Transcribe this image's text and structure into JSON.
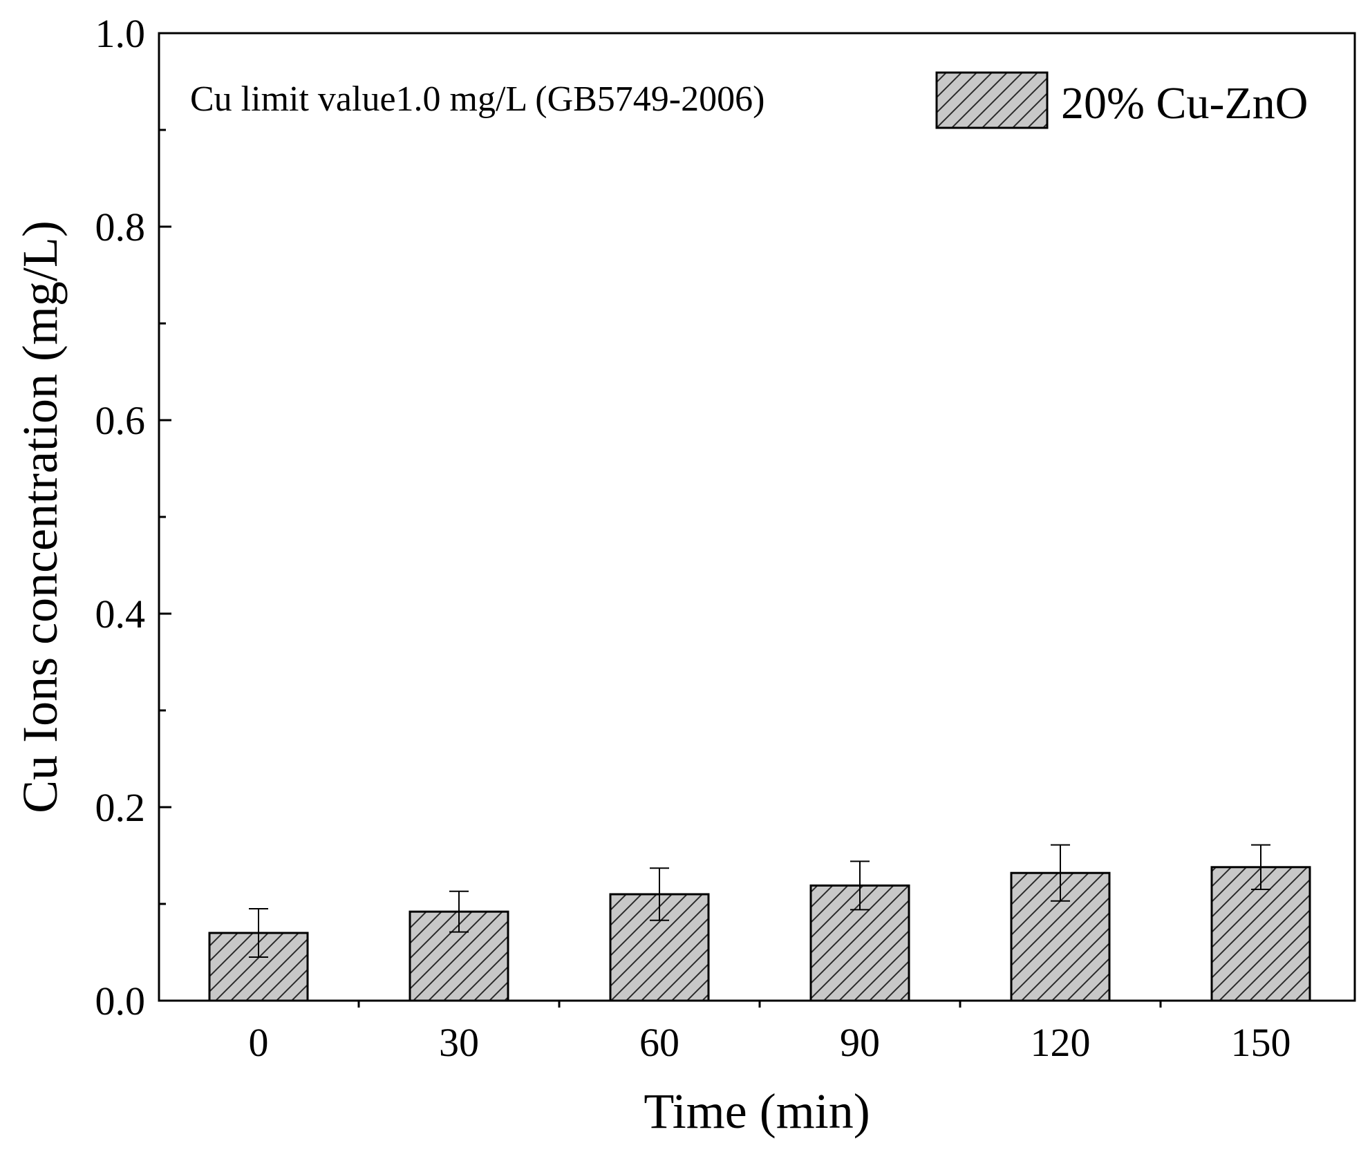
{
  "chart_data": {
    "type": "bar",
    "title": "",
    "xlabel": "Time (min)",
    "ylabel": "Cu Ions concentration (mg/L)",
    "categories": [
      "0",
      "30",
      "60",
      "90",
      "120",
      "150"
    ],
    "series": [
      {
        "name": "20% Cu-ZnO",
        "values": [
          0.07,
          0.092,
          0.11,
          0.119,
          0.132,
          0.138
        ],
        "errors": [
          0.025,
          0.021,
          0.027,
          0.025,
          0.029,
          0.023
        ],
        "fill": "#c8c8c8",
        "pattern": "diagonal-hatch"
      }
    ],
    "ylim": [
      0,
      1.0
    ],
    "yticks": [
      "0.0",
      "0.2",
      "0.4",
      "0.6",
      "0.8",
      "1.0"
    ],
    "annotation": "Cu limit value1.0 mg/L (GB5749-2006)",
    "legend_position": "top-right",
    "grid": false
  }
}
